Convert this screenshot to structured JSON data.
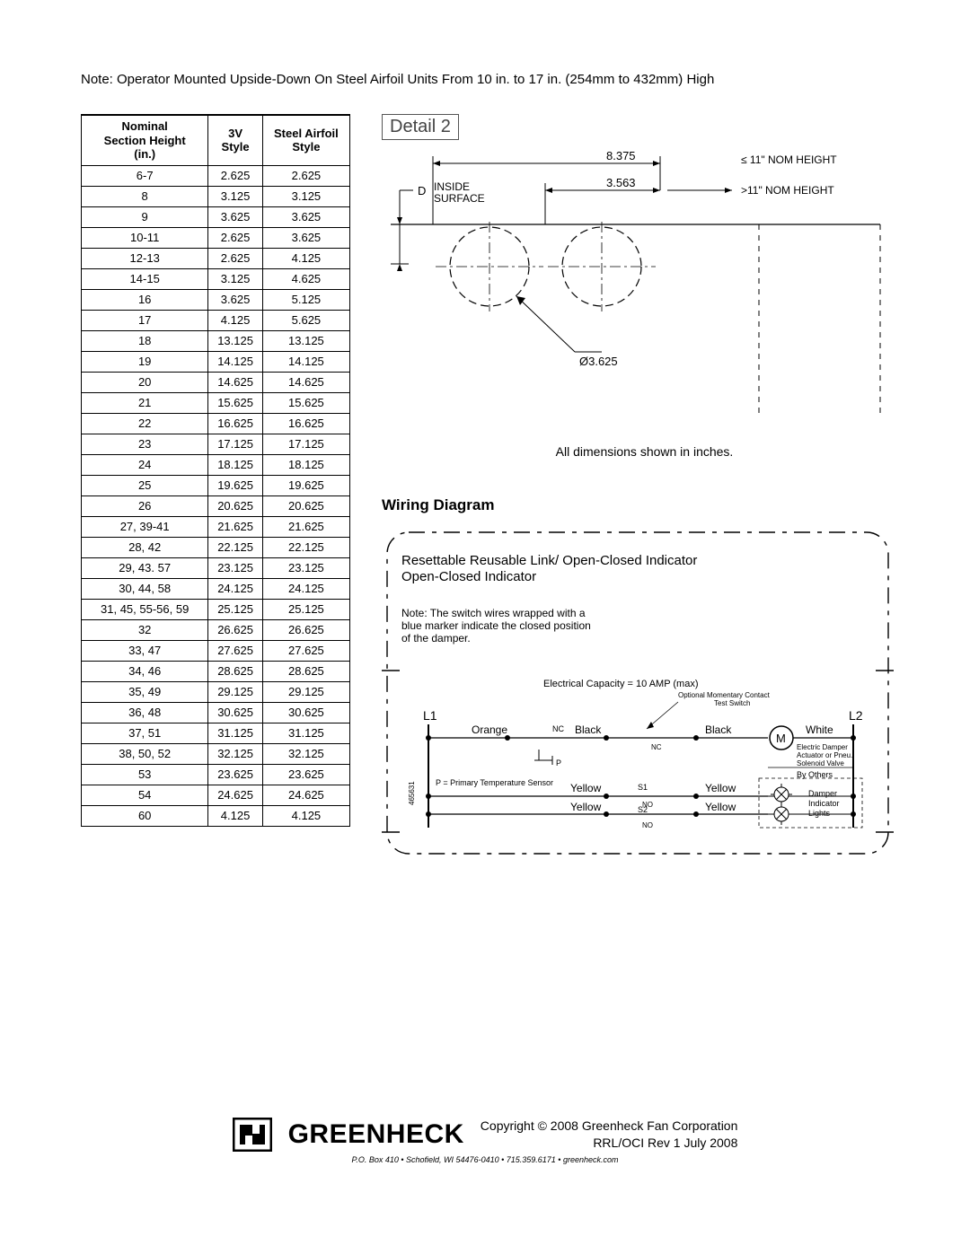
{
  "topNote": "Note: Operator Mounted Upside-Down On Steel Airfoil Units From 10 in. to 17 in. (254mm to 432mm) High",
  "table": {
    "headers": [
      "Nominal\nSection Height\n(in.)",
      "3V\nStyle",
      "Steel Airfoil\nStyle"
    ],
    "rows": [
      [
        "6-7",
        "2.625",
        "2.625"
      ],
      [
        "8",
        "3.125",
        "3.125"
      ],
      [
        "9",
        "3.625",
        "3.625"
      ],
      [
        "10-11",
        "2.625",
        "3.625"
      ],
      [
        "12-13",
        "2.625",
        "4.125"
      ],
      [
        "14-15",
        "3.125",
        "4.625"
      ],
      [
        "16",
        "3.625",
        "5.125"
      ],
      [
        "17",
        "4.125",
        "5.625"
      ],
      [
        "18",
        "13.125",
        "13.125"
      ],
      [
        "19",
        "14.125",
        "14.125"
      ],
      [
        "20",
        "14.625",
        "14.625"
      ],
      [
        "21",
        "15.625",
        "15.625"
      ],
      [
        "22",
        "16.625",
        "16.625"
      ],
      [
        "23",
        "17.125",
        "17.125"
      ],
      [
        "24",
        "18.125",
        "18.125"
      ],
      [
        "25",
        "19.625",
        "19.625"
      ],
      [
        "26",
        "20.625",
        "20.625"
      ],
      [
        "27, 39-41",
        "21.625",
        "21.625"
      ],
      [
        "28, 42",
        "22.125",
        "22.125"
      ],
      [
        "29, 43. 57",
        "23.125",
        "23.125"
      ],
      [
        "30, 44, 58",
        "24.125",
        "24.125"
      ],
      [
        "31, 45, 55-56, 59",
        "25.125",
        "25.125"
      ],
      [
        "32",
        "26.625",
        "26.625"
      ],
      [
        "33, 47",
        "27.625",
        "27.625"
      ],
      [
        "34, 46",
        "28.625",
        "28.625"
      ],
      [
        "35, 49",
        "29.125",
        "29.125"
      ],
      [
        "36, 48",
        "30.625",
        "30.625"
      ],
      [
        "37, 51",
        "31.125",
        "31.125"
      ],
      [
        "38, 50, 52",
        "32.125",
        "32.125"
      ],
      [
        "53",
        "23.625",
        "23.625"
      ],
      [
        "54",
        "24.625",
        "24.625"
      ],
      [
        "60",
        "4.125",
        "4.125"
      ]
    ]
  },
  "detail": {
    "label": "Detail 2",
    "dim1": "8.375",
    "dim2": "3.563",
    "nom1": "≤ 11\" NOM HEIGHT",
    "nom2": ">11\" NOM HEIGHT",
    "inside": "INSIDE\nSURFACE",
    "dLabel": "D",
    "dia": "Ø3.625",
    "dimNote": "All dimensions shown in inches."
  },
  "wiring": {
    "title": "Wiring Diagram",
    "sub": "Resettable Reusable Link/\nOpen-Closed Indicator",
    "note": "Note: The switch wires wrapped with a\nblue marker indicate the closed position\nof the damper.",
    "capacity": "Electrical Capacity = 10 AMP (max)",
    "L1": "L1",
    "L2": "L2",
    "orange": "Orange",
    "black": "Black",
    "white": "White",
    "yellow": "Yellow",
    "nc": "NC",
    "no": "NO",
    "s1": "S1",
    "s2": "S2",
    "p": "P",
    "pNote": "P = Primary Temperature Sensor",
    "m": "M",
    "opt": "Optional Momentary Contact\nTest Switch",
    "act": "Electric Damper\nActuator or Pneu.\nSolenoid Valve",
    "byOthers": "By Others",
    "lights": "Damper\nIndicator\nLights",
    "side": "465631"
  },
  "footer": {
    "brand": "GREENHECK",
    "copy": "Copyright © 2008 Greenheck Fan Corporation",
    "rev": "RRL/OCI Rev 1 July 2008",
    "addr": "P.O. Box 410 • Schofield, WI 54476-0410 • 715.359.6171 • greenheck.com"
  },
  "colors": {
    "stroke": "#000000",
    "gray": "#555555",
    "bg": "#ffffff"
  }
}
